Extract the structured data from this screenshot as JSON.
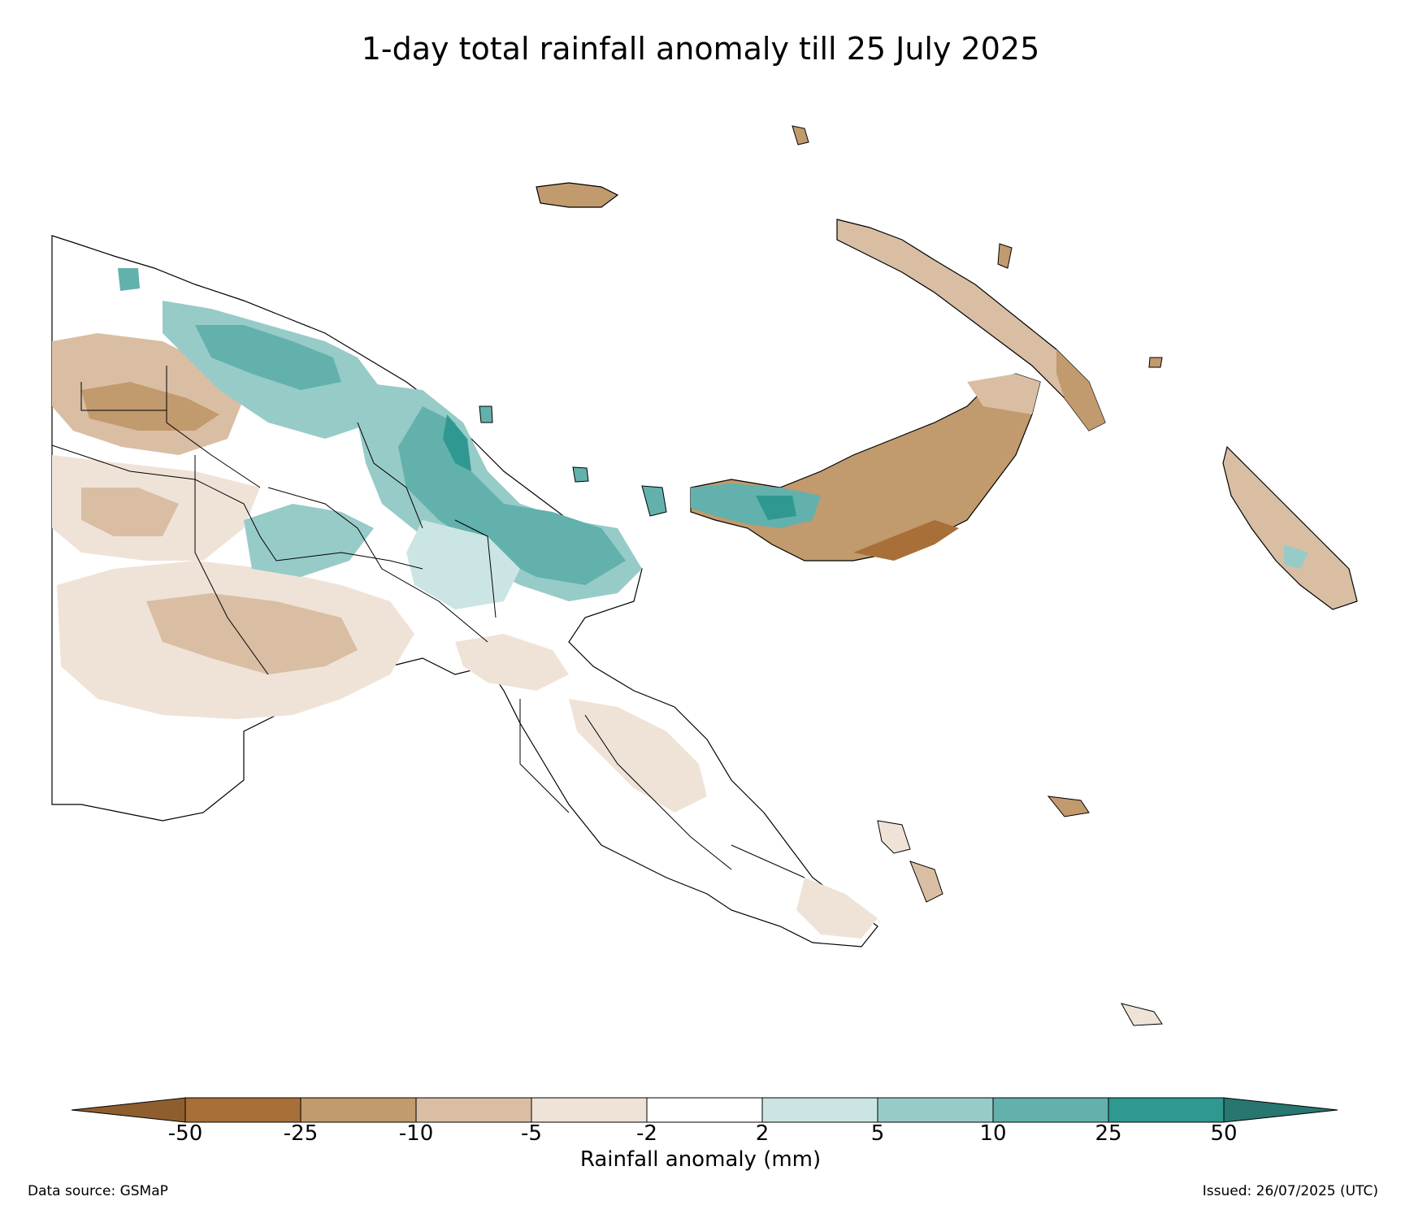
{
  "title": "1-day total rainfall anomaly till 25 July 2025",
  "colorbar": {
    "label": "Rainfall anomaly (mm)",
    "ticks": [
      "-50",
      "-25",
      "-10",
      "-5",
      "-2",
      "2",
      "5",
      "10",
      "25",
      "50"
    ],
    "colors": [
      "#a86f38",
      "#c19a6d",
      "#d9bea3",
      "#efe3d8",
      "#ffffff",
      "#cbe5e4",
      "#97cbc8",
      "#62b1ac",
      "#2f9891"
    ],
    "extend_low_color": "#8e5e2e",
    "extend_high_color": "#27766f"
  },
  "footer": {
    "source": "Data source: GSMaP",
    "issued": "Issued: 26/07/2025 (UTC)"
  },
  "map": {
    "region": "Papua New Guinea"
  }
}
